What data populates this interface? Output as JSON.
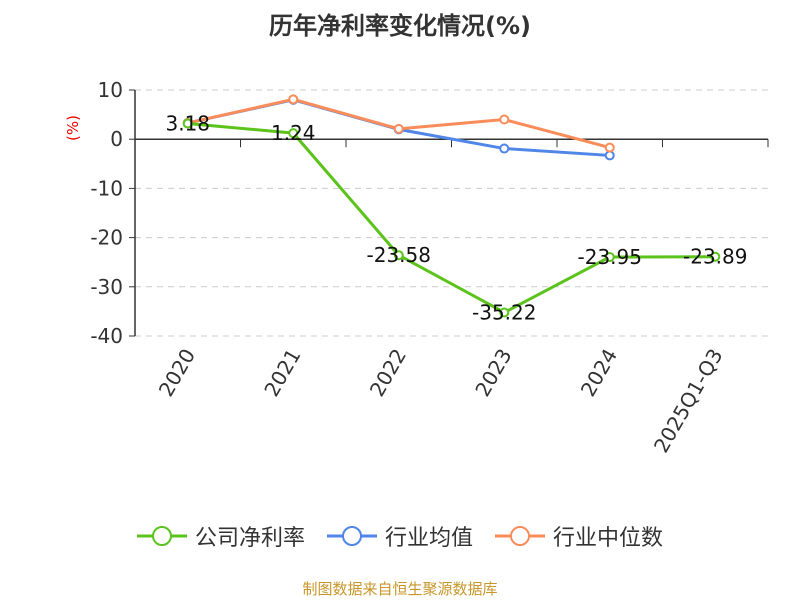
{
  "chart_data": {
    "type": "line",
    "title": "历年净利率变化情况(%)",
    "ylabel": "(%)",
    "categories": [
      "2020",
      "2021",
      "2022",
      "2023",
      "2024",
      "2025Q1-Q3"
    ],
    "ylim": [
      -40,
      10
    ],
    "yticks": [
      10,
      0,
      -10,
      -20,
      -30,
      -40
    ],
    "grid": true,
    "legend_position": "bottom",
    "series": [
      {
        "name": "公司净利率",
        "color": "#5cc31c",
        "values": [
          3.18,
          1.24,
          -23.58,
          -35.22,
          -23.95,
          -23.89
        ],
        "labels": [
          "3.18",
          "1.24",
          "-23.58",
          "-35.22",
          "-23.95",
          "-23.89"
        ]
      },
      {
        "name": "行业均值",
        "color": "#4f86e8",
        "values": [
          3.3,
          8.0,
          2.0,
          -1.9,
          -3.3,
          null
        ]
      },
      {
        "name": "行业中位数",
        "color": "#fa8c5a",
        "values": [
          3.3,
          8.1,
          2.1,
          4.0,
          -1.7,
          null
        ]
      }
    ]
  },
  "source": "制图数据来自恒生聚源数据库"
}
